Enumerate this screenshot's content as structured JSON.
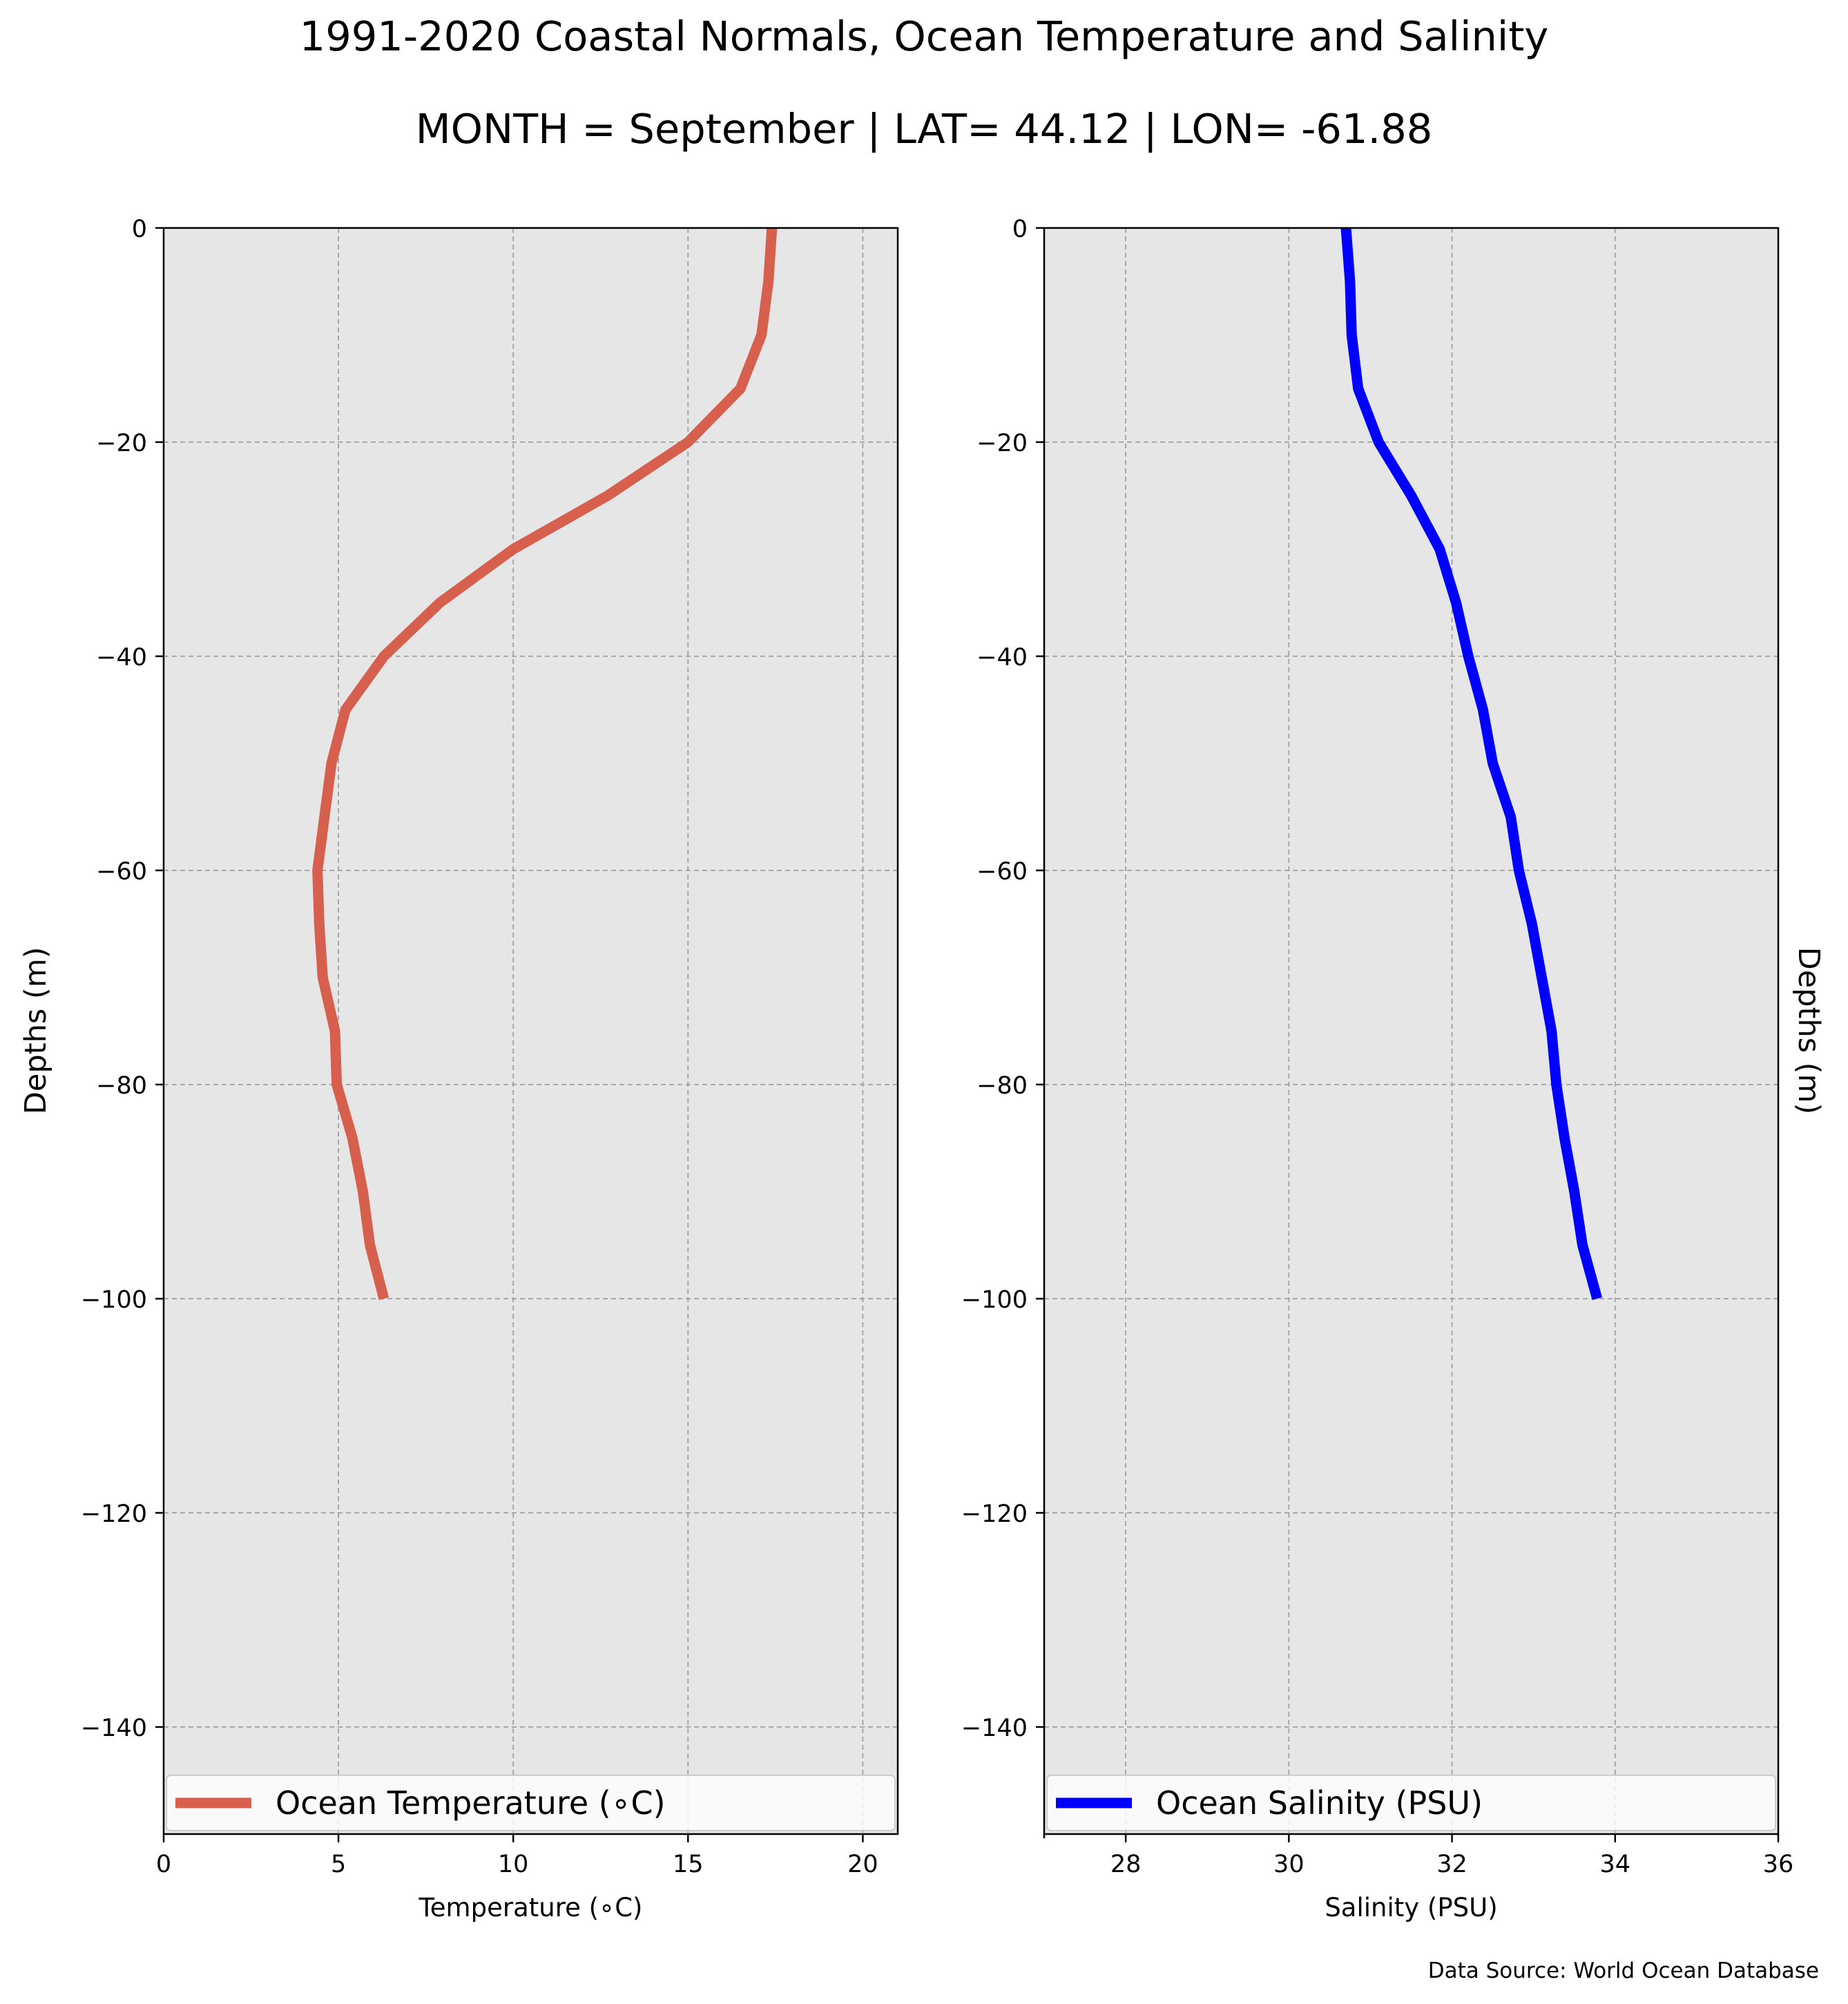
{
  "title": "1991-2020 Coastal Normals, Ocean Temperature and Salinity",
  "subtitle": "MONTH = September | LAT= 44.12 | LON= -61.88",
  "footer": "Data Source: World Ocean Database",
  "colors": {
    "background": "#ffffff",
    "plot_bg": "#e6e6e6",
    "grid": "#a0a0a0"
  },
  "chart_data": [
    {
      "type": "line",
      "xlabel": "Temperature ($^\\circ$C)",
      "xlabel_display": "Temperature (∘C)",
      "ylabel": "Depths (m)",
      "xlim": [
        0,
        21
      ],
      "ylim": [
        -150,
        0
      ],
      "xticks": [
        0,
        5,
        10,
        15,
        20
      ],
      "yticks": [
        0,
        -20,
        -40,
        -60,
        -80,
        -100,
        -120,
        -140
      ],
      "grid": true,
      "legend_position": "bottom",
      "series": [
        {
          "name": "Ocean Temperature (∘C)",
          "color": "#d65f4d",
          "x": [
            17.4,
            17.3,
            17.1,
            16.5,
            15.0,
            12.7,
            10.0,
            7.9,
            6.3,
            5.2,
            4.8,
            4.6,
            4.4,
            4.45,
            4.55,
            4.9,
            4.95,
            5.4,
            5.7,
            5.9,
            6.3
          ],
          "y": [
            0,
            -5,
            -10,
            -15,
            -20,
            -25,
            -30,
            -35,
            -40,
            -45,
            -50,
            -55,
            -60,
            -65,
            -70,
            -75,
            -80,
            -85,
            -90,
            -95,
            -100
          ]
        }
      ]
    },
    {
      "type": "line",
      "xlabel": "Salinity (PSU)",
      "ylabel": "Depths (m)",
      "xlim": [
        27,
        36
      ],
      "ylim": [
        -150,
        0
      ],
      "xticks": [
        28,
        30,
        32,
        34,
        36
      ],
      "yticks": [
        0,
        -20,
        -40,
        -60,
        -80,
        -100,
        -120,
        -140
      ],
      "grid": true,
      "legend_position": "bottom",
      "series": [
        {
          "name": "Ocean Salinity (PSU)",
          "color": "#0000ff",
          "x": [
            30.7,
            30.75,
            30.77,
            30.85,
            31.1,
            31.5,
            31.85,
            32.05,
            32.2,
            32.38,
            32.5,
            32.72,
            32.82,
            32.98,
            33.1,
            33.22,
            33.28,
            33.38,
            33.5,
            33.6,
            33.78
          ],
          "y": [
            0,
            -5,
            -10,
            -15,
            -20,
            -25,
            -30,
            -35,
            -40,
            -45,
            -50,
            -55,
            -60,
            -65,
            -70,
            -75,
            -80,
            -85,
            -90,
            -95,
            -100
          ]
        }
      ]
    }
  ]
}
